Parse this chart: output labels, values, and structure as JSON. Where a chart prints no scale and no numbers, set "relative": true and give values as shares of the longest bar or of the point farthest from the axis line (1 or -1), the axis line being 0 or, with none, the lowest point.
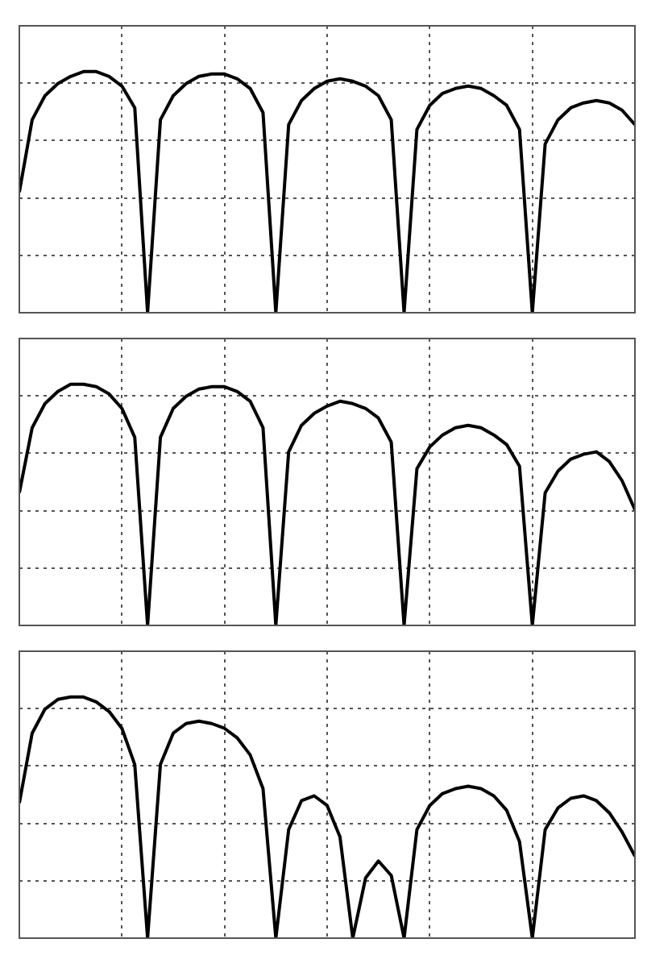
{
  "chart_data": [
    {
      "type": "line",
      "relative": true,
      "grid": true,
      "color": "#000000",
      "categories": [
        null,
        null,
        null,
        null,
        null,
        null,
        null,
        null,
        null,
        null,
        null,
        null,
        null,
        null,
        null,
        null,
        null,
        null,
        null,
        null,
        null,
        null,
        null,
        null,
        null,
        null,
        null,
        null,
        null,
        null,
        null,
        null,
        null,
        null,
        null,
        null,
        null,
        null,
        null,
        null,
        null,
        null,
        null,
        null,
        null,
        null,
        null,
        null,
        null
      ],
      "values": [
        0.5,
        0.8,
        0.9,
        0.95,
        0.98,
        1.0,
        1.0,
        0.98,
        0.94,
        0.85,
        0,
        0.8,
        0.9,
        0.95,
        0.98,
        0.99,
        0.99,
        0.97,
        0.93,
        0.83,
        0,
        0.78,
        0.88,
        0.93,
        0.96,
        0.97,
        0.96,
        0.94,
        0.9,
        0.8,
        0,
        0.76,
        0.86,
        0.91,
        0.93,
        0.94,
        0.93,
        0.9,
        0.86,
        0.76,
        0,
        0.7,
        0.8,
        0.85,
        0.87,
        0.88,
        0.87,
        0.84,
        0.78
      ]
    },
    {
      "type": "line",
      "relative": true,
      "grid": true,
      "color": "#000000",
      "categories": [
        null,
        null,
        null,
        null,
        null,
        null,
        null,
        null,
        null,
        null,
        null,
        null,
        null,
        null,
        null,
        null,
        null,
        null,
        null,
        null,
        null,
        null,
        null,
        null,
        null,
        null,
        null,
        null,
        null,
        null,
        null,
        null,
        null,
        null,
        null,
        null,
        null,
        null,
        null,
        null,
        null,
        null,
        null,
        null,
        null,
        null,
        null,
        null,
        null
      ],
      "values": [
        0.55,
        0.82,
        0.92,
        0.97,
        1.0,
        1.0,
        0.99,
        0.96,
        0.9,
        0.78,
        0,
        0.78,
        0.9,
        0.95,
        0.98,
        0.99,
        0.99,
        0.97,
        0.93,
        0.82,
        0,
        0.72,
        0.83,
        0.88,
        0.91,
        0.93,
        0.92,
        0.9,
        0.86,
        0.76,
        0,
        0.65,
        0.74,
        0.79,
        0.82,
        0.83,
        0.82,
        0.79,
        0.75,
        0.66,
        0,
        0.55,
        0.64,
        0.69,
        0.71,
        0.72,
        0.68,
        0.6,
        0.48
      ]
    },
    {
      "type": "line",
      "relative": true,
      "grid": true,
      "color": "#000000",
      "categories": [
        null,
        null,
        null,
        null,
        null,
        null,
        null,
        null,
        null,
        null,
        null,
        null,
        null,
        null,
        null,
        null,
        null,
        null,
        null,
        null,
        null,
        null,
        null,
        null,
        null,
        null,
        null,
        null,
        null,
        null,
        null,
        null,
        null,
        null,
        null,
        null,
        null,
        null,
        null,
        null,
        null,
        null,
        null,
        null,
        null,
        null,
        null,
        null,
        null
      ],
      "values": [
        0.56,
        0.85,
        0.95,
        0.99,
        1.0,
        1.0,
        0.98,
        0.94,
        0.87,
        0.72,
        0,
        0.72,
        0.85,
        0.89,
        0.9,
        0.89,
        0.87,
        0.83,
        0.76,
        0.62,
        0,
        0.45,
        0.57,
        0.59,
        0.55,
        0.42,
        0,
        0.25,
        0.32,
        0.26,
        0,
        0.45,
        0.55,
        0.6,
        0.62,
        0.63,
        0.62,
        0.59,
        0.53,
        0.4,
        0,
        0.45,
        0.54,
        0.58,
        0.59,
        0.57,
        0.52,
        0.44,
        0.34
      ]
    }
  ]
}
